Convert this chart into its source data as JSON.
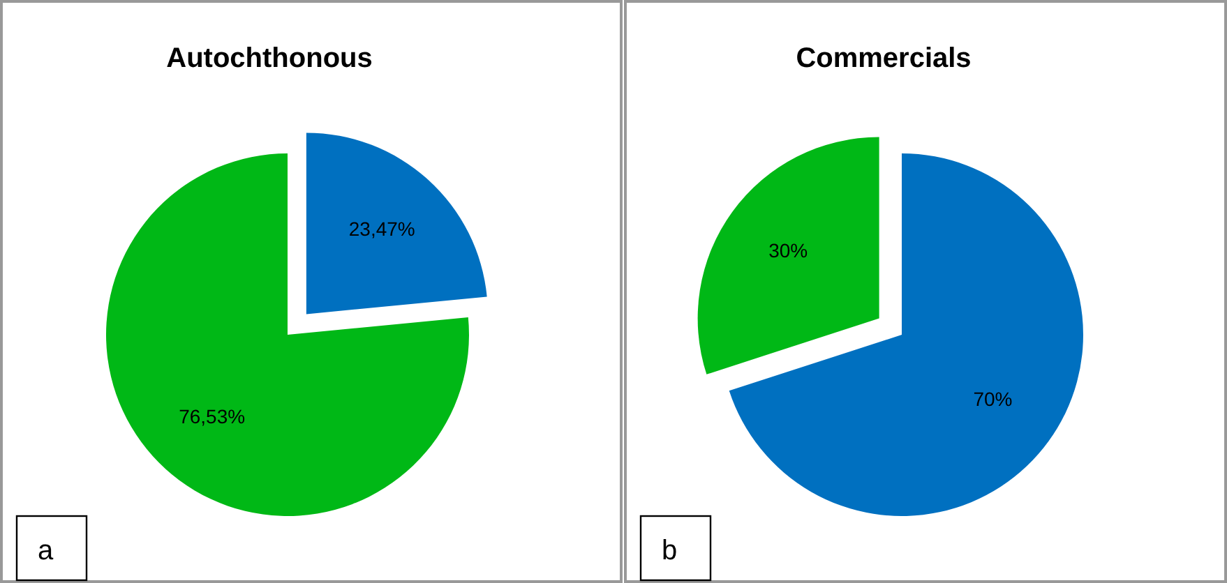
{
  "chart_data": [
    {
      "type": "pie",
      "title": "Autochthonous",
      "categories": [
        null,
        null
      ],
      "values": [
        23.47,
        76.53
      ],
      "colors": [
        "#0070c0",
        "#00b816"
      ],
      "value_labels": [
        "23,47%",
        "76,53%"
      ],
      "annotations": [
        "a"
      ]
    },
    {
      "type": "pie",
      "title": "Commercials",
      "categories": [
        null,
        null
      ],
      "values": [
        70,
        30
      ],
      "colors": [
        "#0070c0",
        "#00b816"
      ],
      "value_labels": [
        "70%",
        "30%"
      ],
      "annotations": [
        "b"
      ]
    }
  ]
}
